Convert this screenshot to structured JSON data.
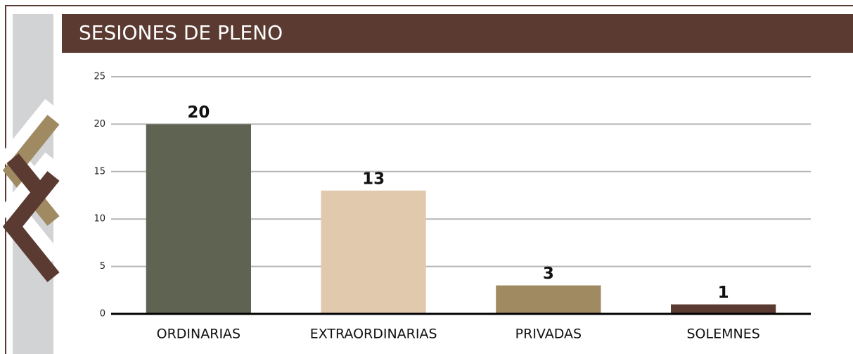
{
  "chart_data": {
    "type": "bar",
    "title": "SESIONES DE PLENO",
    "categories": [
      "ORDINARIAS",
      "EXTRAORDINARIAS",
      "PRIVADAS",
      "SOLEMNES"
    ],
    "values": [
      20,
      13,
      3,
      1
    ],
    "colors": [
      "#5f6352",
      "#e0c9ad",
      "#a08a62",
      "#5a3a31"
    ],
    "ylim": [
      0,
      25
    ],
    "yticks": [
      0,
      5,
      10,
      15,
      20,
      25
    ],
    "grid": true
  }
}
